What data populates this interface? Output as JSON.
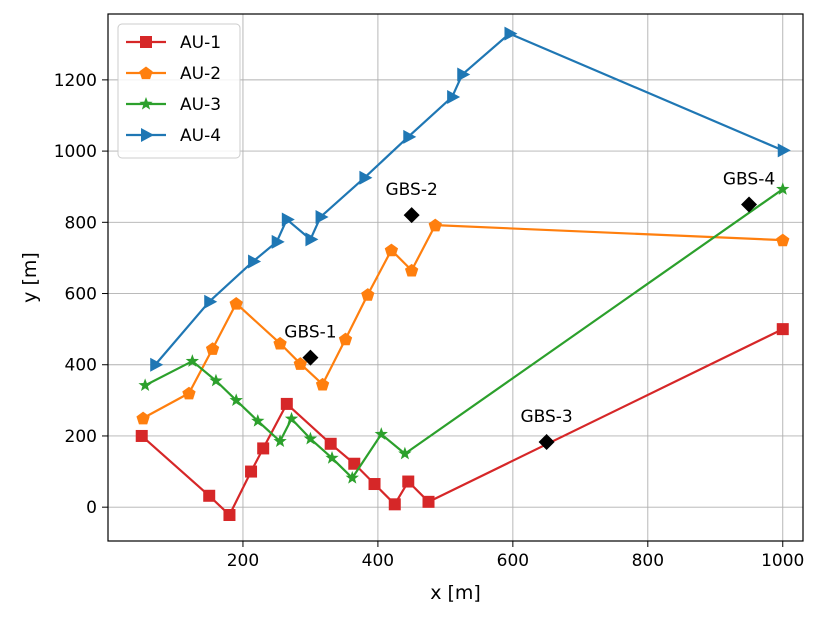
{
  "chart_data": {
    "type": "line",
    "xlabel": "x [m]",
    "ylabel": "y [m]",
    "xlim": [
      0,
      1030
    ],
    "ylim": [
      -95,
      1385
    ],
    "x_ticks": [
      200,
      400,
      600,
      800,
      1000
    ],
    "y_ticks": [
      0,
      200,
      400,
      600,
      800,
      1000,
      1200
    ],
    "grid": true,
    "legend_position": "top-left",
    "series": [
      {
        "name": "AU-1",
        "color": "#d62728",
        "marker": "square",
        "points": [
          [
            50,
            200
          ],
          [
            150,
            32
          ],
          [
            180,
            -22
          ],
          [
            212,
            100
          ],
          [
            230,
            165
          ],
          [
            265,
            290
          ],
          [
            330,
            178
          ],
          [
            365,
            122
          ],
          [
            395,
            65
          ],
          [
            425,
            8
          ],
          [
            445,
            72
          ],
          [
            475,
            15
          ],
          [
            1000,
            500
          ]
        ]
      },
      {
        "name": "AU-2",
        "color": "#ff7f0e",
        "marker": "pentagon",
        "points": [
          [
            52,
            250
          ],
          [
            120,
            320
          ],
          [
            155,
            445
          ],
          [
            190,
            572
          ],
          [
            255,
            460
          ],
          [
            285,
            403
          ],
          [
            318,
            345
          ],
          [
            352,
            472
          ],
          [
            385,
            597
          ],
          [
            420,
            722
          ],
          [
            450,
            665
          ],
          [
            485,
            792
          ],
          [
            1000,
            750
          ]
        ]
      },
      {
        "name": "AU-3",
        "color": "#2ca02c",
        "marker": "star",
        "points": [
          [
            55,
            342
          ],
          [
            125,
            410
          ],
          [
            160,
            355
          ],
          [
            190,
            300
          ],
          [
            222,
            242
          ],
          [
            255,
            185
          ],
          [
            272,
            248
          ],
          [
            300,
            192
          ],
          [
            332,
            138
          ],
          [
            362,
            82
          ],
          [
            405,
            205
          ],
          [
            440,
            150
          ],
          [
            1000,
            893
          ]
        ]
      },
      {
        "name": "AU-4",
        "color": "#1f77b4",
        "marker": "triangle-right",
        "points": [
          [
            70,
            400
          ],
          [
            150,
            577
          ],
          [
            215,
            690
          ],
          [
            250,
            745
          ],
          [
            265,
            808
          ],
          [
            300,
            752
          ],
          [
            315,
            815
          ],
          [
            380,
            925
          ],
          [
            445,
            1040
          ],
          [
            510,
            1152
          ],
          [
            525,
            1215
          ],
          [
            595,
            1330
          ],
          [
            1000,
            1002
          ]
        ]
      }
    ],
    "annotations": [
      {
        "label": "GBS-1",
        "x": 300,
        "y": 420
      },
      {
        "label": "GBS-2",
        "x": 450,
        "y": 820
      },
      {
        "label": "GBS-3",
        "x": 650,
        "y": 183
      },
      {
        "label": "GBS-4",
        "x": 950,
        "y": 850
      }
    ]
  }
}
